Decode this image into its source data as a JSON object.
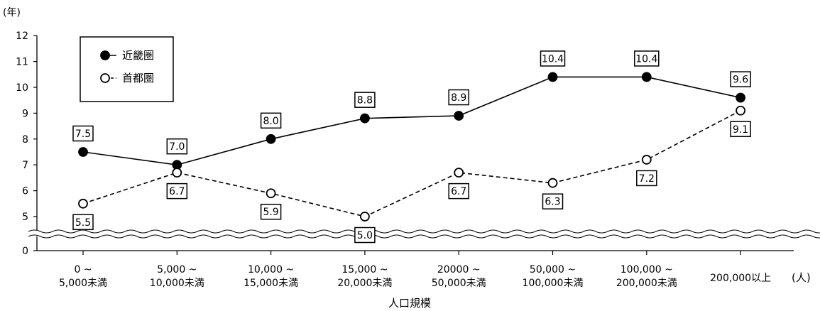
{
  "chart_data": {
    "type": "line",
    "y_unit_label": "(年)",
    "xlabel": "人口規模",
    "x_unit_label": "(人)",
    "categories": [
      [
        "0 ~",
        "5,000未満"
      ],
      [
        "5,000 ~",
        "10,000未満"
      ],
      [
        "10,000 ~",
        "15,000未満"
      ],
      [
        "15,000 ~",
        "20,000未満"
      ],
      [
        "20000 ~",
        "50,000未満"
      ],
      [
        "50,000 ~",
        "100,000未満"
      ],
      [
        "100,000 ~",
        "200,000未満"
      ],
      [
        "200,000以上"
      ]
    ],
    "yticks": [
      "0",
      "5",
      "6",
      "7",
      "8",
      "9",
      "10",
      "11",
      "12"
    ],
    "ylim": [
      4,
      12
    ],
    "axis_break": true,
    "legend_position": "top-left",
    "series": [
      {
        "name": "近畿圏",
        "marker": "filled-circle",
        "line": "solid",
        "values": [
          7.5,
          7.0,
          8.0,
          8.8,
          8.9,
          10.4,
          10.4,
          9.6
        ],
        "labels": [
          "7.5",
          "7.0",
          "8.0",
          "8.8",
          "8.9",
          "10.4",
          "10.4",
          "9.6"
        ]
      },
      {
        "name": "首都圏",
        "marker": "open-circle",
        "line": "dashed",
        "values": [
          5.5,
          6.7,
          5.9,
          5.0,
          6.7,
          6.3,
          7.2,
          9.1
        ],
        "labels": [
          "5.5",
          "6.7",
          "5.9",
          "5.0",
          "6.7",
          "6.3",
          "7.2",
          "9.1"
        ]
      }
    ]
  }
}
